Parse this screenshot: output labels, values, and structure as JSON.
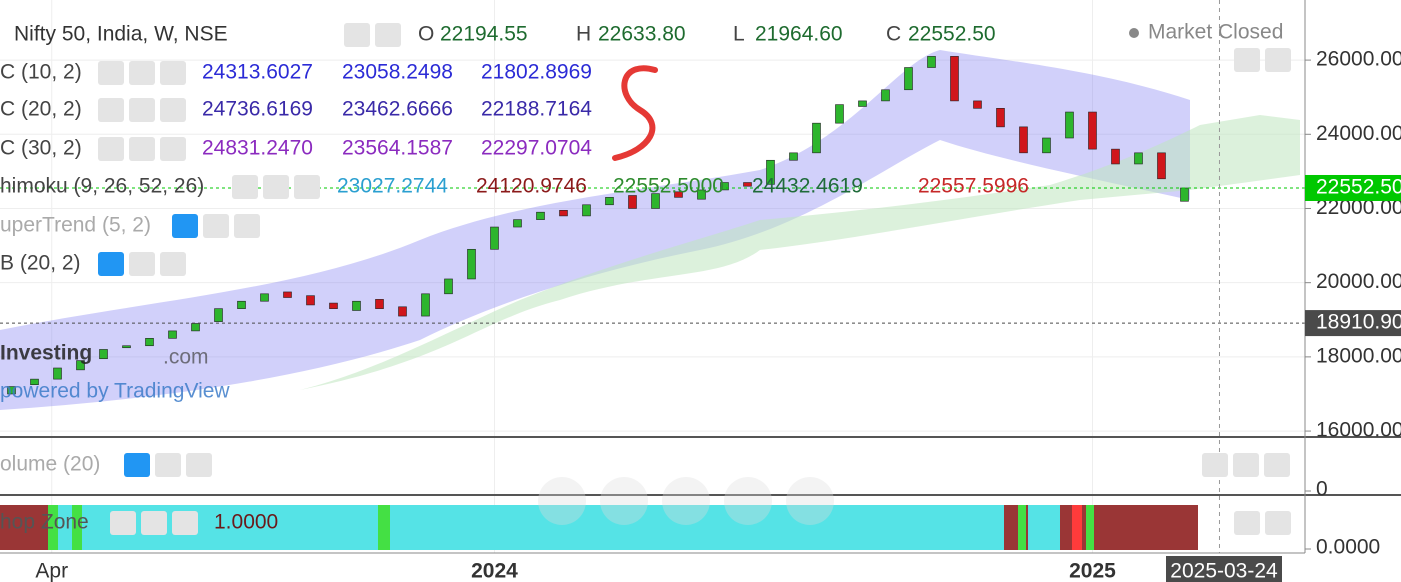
{
  "header": {
    "title": "Nifty 50, India, W, NSE",
    "ohlc": [
      {
        "label": "O",
        "value": "22194.55"
      },
      {
        "label": "H",
        "value": "22633.80"
      },
      {
        "label": "L",
        "value": "21964.60"
      },
      {
        "label": "C",
        "value": "22552.50"
      }
    ],
    "status": "Market Closed"
  },
  "indicators": [
    {
      "name": "C (10, 2)",
      "values": [
        "24313.6027",
        "23058.2498",
        "21802.8969"
      ],
      "colors": [
        "#2b2bd6",
        "#2b2bd6",
        "#2b2bd6"
      ]
    },
    {
      "name": "C (20, 2)",
      "values": [
        "24736.6169",
        "23462.6666",
        "22188.7164"
      ],
      "colors": [
        "#3a2aa8",
        "#3a2aa8",
        "#3a2aa8"
      ]
    },
    {
      "name": "C (30, 2)",
      "values": [
        "24831.2470",
        "23564.1587",
        "22297.0704"
      ],
      "colors": [
        "#8b2bbf",
        "#8b2bbf",
        "#8b2bbf"
      ]
    },
    {
      "name": "himoku (9, 26, 52, 26)",
      "values": [
        "23027.2744",
        "24120.9746",
        "22552.5000",
        "24432.4619",
        "22557.5996"
      ],
      "colors": [
        "#2a9fd0",
        "#8b1a1a",
        "#2e8b2e",
        "#1f6b3a",
        "#c62828"
      ]
    },
    {
      "name": "uperTrend (5, 2)",
      "values": [],
      "colors": []
    },
    {
      "name": "B (20, 2)",
      "values": [],
      "colors": []
    }
  ],
  "watermark": {
    "brand": "Investing",
    "suffix": ".com",
    "powered": "powered by TradingView"
  },
  "chart_data": {
    "type": "candlestick",
    "x": [
      1,
      3,
      5,
      7,
      9,
      11,
      13,
      15,
      17,
      19,
      21,
      23,
      25,
      27,
      29,
      31,
      33,
      35,
      37,
      39,
      41,
      43,
      45,
      47,
      49,
      51,
      53,
      55,
      57,
      59,
      61,
      63,
      65,
      67,
      69,
      71,
      73,
      75,
      77,
      79,
      81,
      83,
      85,
      87,
      89,
      91,
      93,
      95,
      97,
      99,
      101,
      103
    ],
    "open": [
      17000,
      17250,
      17400,
      17650,
      17950,
      18250,
      18300,
      18500,
      18700,
      18950,
      19300,
      19500,
      19750,
      19650,
      19450,
      19250,
      19550,
      19350,
      19100,
      19700,
      20100,
      20900,
      21500,
      21700,
      21950,
      21800,
      22100,
      22350,
      22000,
      22450,
      22250,
      22500,
      22700,
      22650,
      23300,
      23500,
      24300,
      24750,
      24900,
      25200,
      25800,
      26100,
      24900,
      24700,
      24200,
      23500,
      23900,
      24600,
      23600,
      23200,
      23500,
      22194.55
    ],
    "close": [
      17200,
      17400,
      17700,
      17900,
      18200,
      18300,
      18500,
      18700,
      18900,
      19300,
      19500,
      19700,
      19600,
      19400,
      19300,
      19500,
      19300,
      19100,
      19700,
      20100,
      20900,
      21500,
      21700,
      21900,
      21800,
      22100,
      22300,
      22000,
      22400,
      22300,
      22500,
      22700,
      22600,
      23300,
      23500,
      24300,
      24800,
      24900,
      25200,
      25800,
      26100,
      24900,
      24700,
      24200,
      23500,
      23900,
      24600,
      23600,
      23200,
      23500,
      22800,
      22552.5
    ],
    "up_color": "#2db52d",
    "down_color": "#d0161b",
    "xlim": [
      0,
      113.48
    ],
    "ylim": [
      15840,
      27620
    ],
    "yticks": [
      {
        "value": 26000,
        "label": "26000.00"
      },
      {
        "value": 24000,
        "label": "24000.00"
      },
      {
        "value": 22000,
        "label": "22000.00"
      },
      {
        "value": 20000,
        "label": "20000.00"
      },
      {
        "value": 18000,
        "label": "18000.00"
      },
      {
        "value": 16000,
        "label": "16000.00"
      }
    ],
    "xticks": [
      {
        "value": 4.5,
        "label": "Apr"
      },
      {
        "value": 43,
        "label": "2024"
      },
      {
        "value": 95,
        "label": "2025"
      }
    ],
    "price_labels": [
      {
        "value": 22552.5,
        "label": "22552.50",
        "color": "#00c800"
      },
      {
        "value": 18910.9,
        "label": "18910.90",
        "color": "#4a4a4a"
      }
    ],
    "crosshair": {
      "value": 103,
      "label": "2025-03-24"
    },
    "grid": true
  },
  "volume_panel": {
    "name": "olume (20)",
    "yticks": [
      0
    ]
  },
  "chop_panel": {
    "name": "hop Zone",
    "value": "1.0000",
    "yticks": [
      {
        "value": 0,
        "label": "0.0000"
      }
    ]
  }
}
